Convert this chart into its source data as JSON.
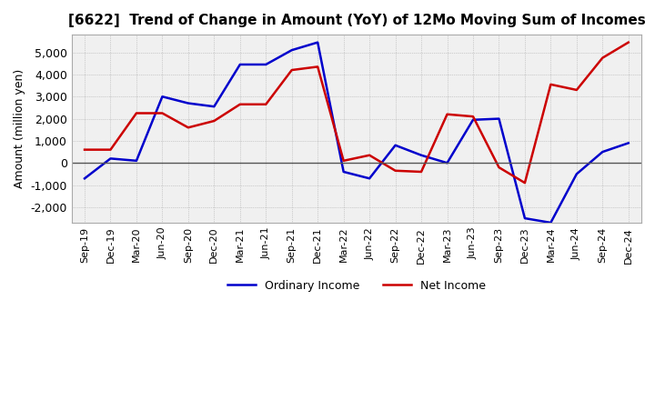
{
  "title": "[6622]  Trend of Change in Amount (YoY) of 12Mo Moving Sum of Incomes",
  "ylabel": "Amount (million yen)",
  "x_labels": [
    "Sep-19",
    "Dec-19",
    "Mar-20",
    "Jun-20",
    "Sep-20",
    "Dec-20",
    "Mar-21",
    "Jun-21",
    "Sep-21",
    "Dec-21",
    "Mar-22",
    "Jun-22",
    "Sep-22",
    "Dec-22",
    "Mar-23",
    "Jun-23",
    "Sep-23",
    "Dec-23",
    "Mar-24",
    "Jun-24",
    "Sep-24",
    "Dec-24"
  ],
  "ordinary_income": [
    -700,
    200,
    100,
    3000,
    2700,
    2550,
    4450,
    4450,
    5100,
    5450,
    -400,
    -700,
    800,
    350,
    0,
    1950,
    2000,
    -2500,
    -2700,
    -500,
    500,
    900
  ],
  "net_income": [
    600,
    600,
    2250,
    2250,
    1600,
    1900,
    2650,
    2650,
    4200,
    4350,
    100,
    350,
    -350,
    -400,
    2200,
    2100,
    -200,
    -900,
    3550,
    3300,
    4750,
    5450
  ],
  "ordinary_color": "#0000cc",
  "net_color": "#cc0000",
  "ylim": [
    -2700,
    5800
  ],
  "yticks": [
    -2000,
    -1000,
    0,
    1000,
    2000,
    3000,
    4000,
    5000
  ],
  "legend_labels": [
    "Ordinary Income",
    "Net Income"
  ],
  "background_color": "#ffffff",
  "plot_bg_color": "#f0f0f0",
  "grid_color": "#aaaaaa"
}
